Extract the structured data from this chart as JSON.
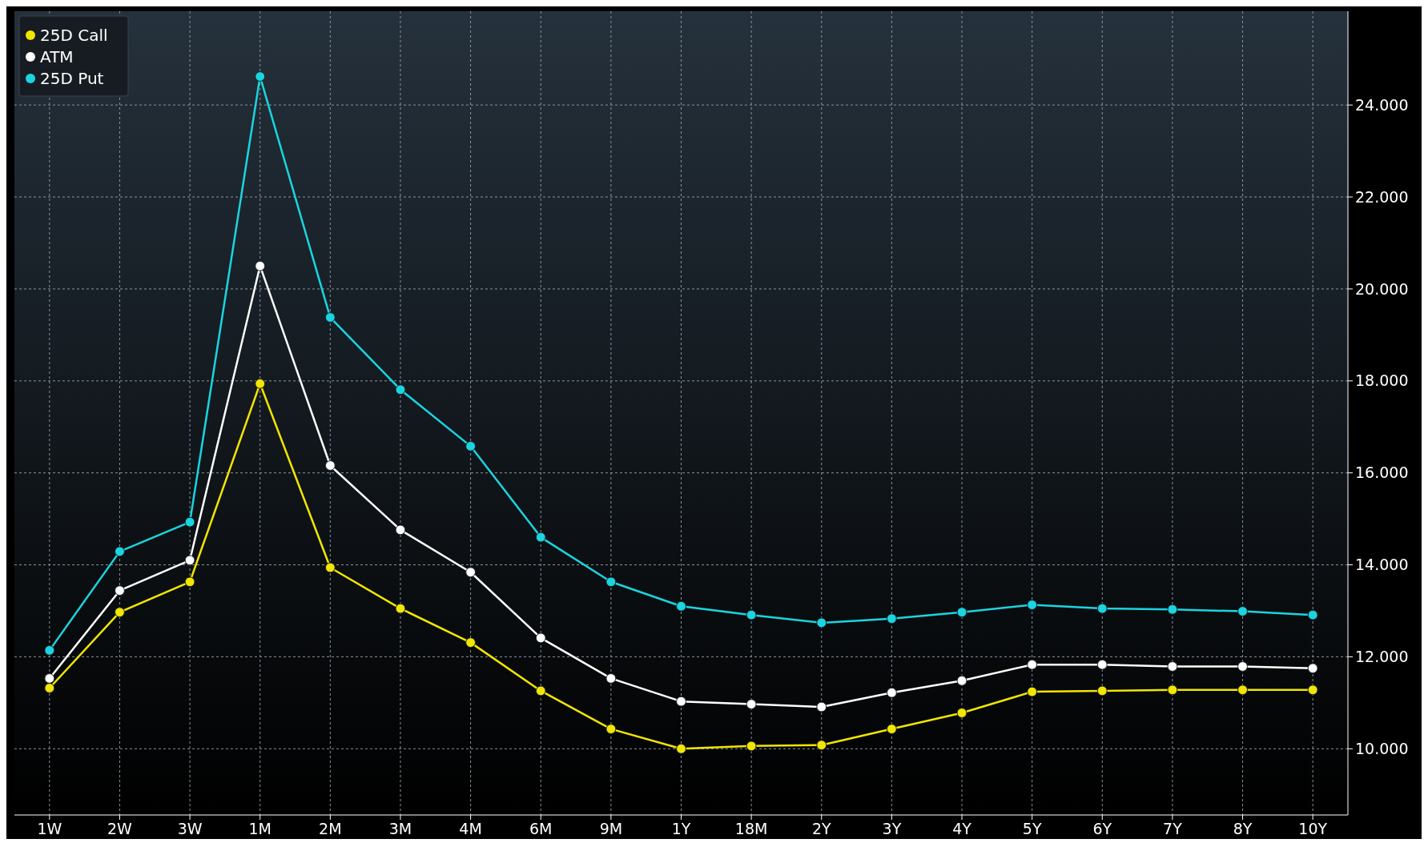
{
  "chart_data": {
    "type": "line",
    "categories": [
      "1W",
      "2W",
      "3W",
      "1M",
      "2M",
      "3M",
      "4M",
      "6M",
      "9M",
      "1Y",
      "18M",
      "2Y",
      "3Y",
      "4Y",
      "5Y",
      "6Y",
      "7Y",
      "8Y",
      "10Y"
    ],
    "series": [
      {
        "name": "25D Call",
        "color": "#f2e600",
        "values": [
          11.32,
          12.97,
          13.63,
          17.94,
          13.94,
          13.05,
          12.31,
          11.26,
          10.43,
          10.0,
          10.06,
          10.08,
          10.43,
          10.78,
          11.24,
          11.26,
          11.28,
          11.28,
          11.28
        ]
      },
      {
        "name": "ATM",
        "color": "#ffffff",
        "values": [
          11.53,
          13.44,
          14.1,
          20.5,
          16.16,
          14.76,
          13.84,
          12.41,
          11.53,
          11.03,
          10.97,
          10.91,
          11.22,
          11.48,
          11.83,
          11.83,
          11.79,
          11.79,
          11.75
        ]
      },
      {
        "name": "25D Put",
        "color": "#1ad5e0",
        "values": [
          12.14,
          14.29,
          14.93,
          24.62,
          19.38,
          17.81,
          16.58,
          14.6,
          13.63,
          13.1,
          12.91,
          12.74,
          12.83,
          12.97,
          13.13,
          13.05,
          13.03,
          12.99,
          12.91
        ]
      }
    ],
    "ylim": [
      8.56,
      26.04
    ],
    "yticks": [
      {
        "value": 10,
        "label": "10.000"
      },
      {
        "value": 12,
        "label": "12.000"
      },
      {
        "value": 14,
        "label": "14.000"
      },
      {
        "value": 16,
        "label": "16.000"
      },
      {
        "value": 18,
        "label": "18.000"
      },
      {
        "value": 20,
        "label": "20.000"
      },
      {
        "value": 22,
        "label": "22.000"
      },
      {
        "value": 24,
        "label": "24.000"
      }
    ],
    "grid": true,
    "legend": "top left",
    "marker": "circle",
    "line_style": "solid"
  }
}
